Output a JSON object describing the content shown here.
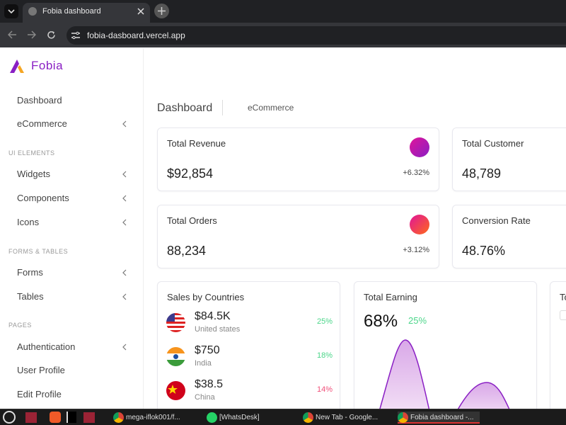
{
  "browser": {
    "tab_title": "Fobia dashboard",
    "url": "fobia-dasboard.vercel.app"
  },
  "sidebar": {
    "brand": "Fobia",
    "items": [
      {
        "label": "Dashboard",
        "chevron": false
      },
      {
        "label": "eCommerce",
        "chevron": true
      }
    ],
    "sections": [
      {
        "title": "UI ELEMENTS",
        "items": [
          {
            "label": "Widgets",
            "chevron": true
          },
          {
            "label": "Components",
            "chevron": true
          },
          {
            "label": "Icons",
            "chevron": true
          }
        ]
      },
      {
        "title": "FORMS & TABLES",
        "items": [
          {
            "label": "Forms",
            "chevron": true
          },
          {
            "label": "Tables",
            "chevron": true
          }
        ]
      },
      {
        "title": "PAGES",
        "items": [
          {
            "label": "Authentication",
            "chevron": true
          },
          {
            "label": "User Profile",
            "chevron": false
          },
          {
            "label": "Edit Profile",
            "chevron": false
          }
        ]
      }
    ]
  },
  "breadcrumb": {
    "title": "Dashboard",
    "current": "eCommerce"
  },
  "stats": [
    {
      "title": "Total Revenue",
      "value": "$92,854",
      "change": "+6.32%"
    },
    {
      "title": "Total Customer",
      "value": "48,789"
    },
    {
      "title": "Total Orders",
      "value": "88,234",
      "change": "+3.12%"
    },
    {
      "title": "Conversion Rate",
      "value": "48.76%"
    }
  ],
  "sales": {
    "title": "Sales by Countries",
    "rows": [
      {
        "amount": "$84.5K",
        "country": "United states",
        "pct": "25%",
        "trend": "up"
      },
      {
        "amount": "$750",
        "country": "India",
        "pct": "18%",
        "trend": "up"
      },
      {
        "amount": "$38.5",
        "country": "China",
        "pct": "14%",
        "trend": "down"
      }
    ]
  },
  "earning": {
    "title": "Total Earning",
    "value": "68%",
    "change": "25%"
  },
  "third_card": {
    "title": "To"
  },
  "colors": {
    "brand": "#8a1fc4",
    "up": "#4cd68a",
    "down": "#f0507a"
  },
  "taskbar": {
    "items": [
      "mega-iflok001/f...",
      "[WhatsDesk]",
      "New Tab - Google...",
      "Fobia dashboard -..."
    ]
  }
}
